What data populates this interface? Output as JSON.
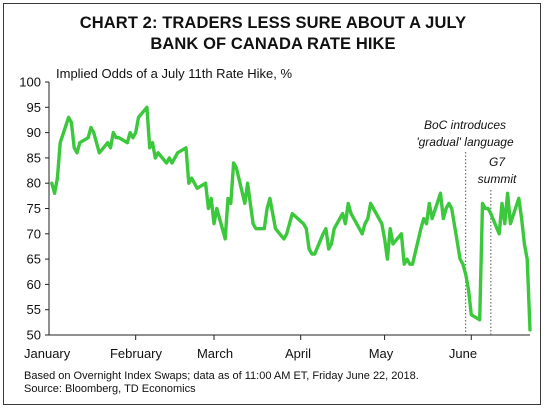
{
  "chart_data": {
    "type": "line",
    "title_lines": [
      "CHART 2: TRADERS LESS SURE ABOUT A JULY",
      "BANK OF CANADA RATE HIKE"
    ],
    "ylabel": "Implied Odds of a July 11th Rate Hike, %",
    "ylim": [
      50,
      100
    ],
    "yticks": [
      50,
      55,
      60,
      65,
      70,
      75,
      80,
      85,
      90,
      95,
      100
    ],
    "xlim": [
      "2018-01-01",
      "2018-06-22"
    ],
    "month_labels": [
      "January",
      "February",
      "March",
      "April",
      "May",
      "June"
    ],
    "grid": false,
    "legend": "none",
    "line_color": "#3cc83c",
    "series": [
      {
        "x": [
          "2018-01-02",
          "2018-01-03",
          "2018-01-04",
          "2018-01-05",
          "2018-01-08",
          "2018-01-09",
          "2018-01-10",
          "2018-01-11",
          "2018-01-12",
          "2018-01-15",
          "2018-01-16",
          "2018-01-17",
          "2018-01-18",
          "2018-01-19",
          "2018-01-22",
          "2018-01-23",
          "2018-01-24",
          "2018-01-25",
          "2018-01-26",
          "2018-01-29",
          "2018-01-30",
          "2018-01-31",
          "2018-02-01",
          "2018-02-02",
          "2018-02-05",
          "2018-02-06",
          "2018-02-07",
          "2018-02-08",
          "2018-02-09",
          "2018-02-12",
          "2018-02-13",
          "2018-02-14",
          "2018-02-15",
          "2018-02-16",
          "2018-02-19",
          "2018-02-20",
          "2018-02-21",
          "2018-02-22",
          "2018-02-23",
          "2018-02-26",
          "2018-02-27",
          "2018-02-28",
          "2018-03-01",
          "2018-03-02",
          "2018-03-05",
          "2018-03-06",
          "2018-03-07",
          "2018-03-08",
          "2018-03-09",
          "2018-03-12",
          "2018-03-13",
          "2018-03-14",
          "2018-03-15",
          "2018-03-16",
          "2018-03-19",
          "2018-03-20",
          "2018-03-21",
          "2018-03-22",
          "2018-03-23",
          "2018-03-26",
          "2018-03-27",
          "2018-03-28",
          "2018-03-29",
          "2018-04-02",
          "2018-04-03",
          "2018-04-04",
          "2018-04-05",
          "2018-04-06",
          "2018-04-09",
          "2018-04-10",
          "2018-04-11",
          "2018-04-12",
          "2018-04-13",
          "2018-04-16",
          "2018-04-17",
          "2018-04-18",
          "2018-04-19",
          "2018-04-20",
          "2018-04-23",
          "2018-04-24",
          "2018-04-25",
          "2018-04-26",
          "2018-04-27",
          "2018-04-30",
          "2018-05-01",
          "2018-05-02",
          "2018-05-03",
          "2018-05-04",
          "2018-05-07",
          "2018-05-08",
          "2018-05-09",
          "2018-05-10",
          "2018-05-11",
          "2018-05-14",
          "2018-05-15",
          "2018-05-16",
          "2018-05-17",
          "2018-05-18",
          "2018-05-21",
          "2018-05-22",
          "2018-05-23",
          "2018-05-24",
          "2018-05-25",
          "2018-05-28",
          "2018-05-29",
          "2018-05-30",
          "2018-05-31",
          "2018-06-01",
          "2018-06-04",
          "2018-06-05",
          "2018-06-06",
          "2018-06-07",
          "2018-06-08",
          "2018-06-11",
          "2018-06-12",
          "2018-06-13",
          "2018-06-14",
          "2018-06-15",
          "2018-06-18",
          "2018-06-19",
          "2018-06-20",
          "2018-06-21",
          "2018-06-22"
        ],
        "y": [
          80,
          78,
          81,
          88,
          93,
          92,
          87,
          86,
          88,
          89,
          91,
          90,
          88,
          86,
          88,
          87,
          90,
          89,
          89,
          88,
          90,
          89,
          90,
          93,
          95,
          87,
          88,
          85,
          86,
          84,
          85,
          84,
          85,
          86,
          87,
          80,
          81,
          80,
          79,
          80,
          75,
          77,
          72,
          75,
          69,
          77,
          76,
          84,
          83,
          76,
          80,
          76,
          72,
          71,
          71,
          75,
          77,
          74,
          71,
          69,
          70,
          72,
          74,
          72,
          71,
          67,
          66,
          66,
          70,
          71,
          67,
          68,
          71,
          74,
          72,
          76,
          74,
          73,
          70,
          72,
          73,
          76,
          75,
          72,
          69,
          65,
          71,
          68,
          70,
          64,
          65,
          64,
          64,
          71,
          73,
          72,
          76,
          73,
          78,
          73,
          75,
          76,
          75,
          65,
          64,
          62,
          59,
          54,
          53,
          76,
          75,
          75,
          74,
          70,
          76,
          72,
          78,
          72,
          77,
          73,
          68,
          65,
          51
        ]
      }
    ],
    "annotations": [
      {
        "lines": [
          "BoC introduces",
          "'gradual' language"
        ],
        "date": "2018-05-30"
      },
      {
        "lines": [
          "G7",
          "summit"
        ],
        "date": "2018-06-08"
      }
    ],
    "notes": [
      "Based on Overnight Index Swaps; data as of 11:00 AM ET, Friday June 22, 2018.",
      "Source: Bloomberg, TD Economics"
    ]
  }
}
